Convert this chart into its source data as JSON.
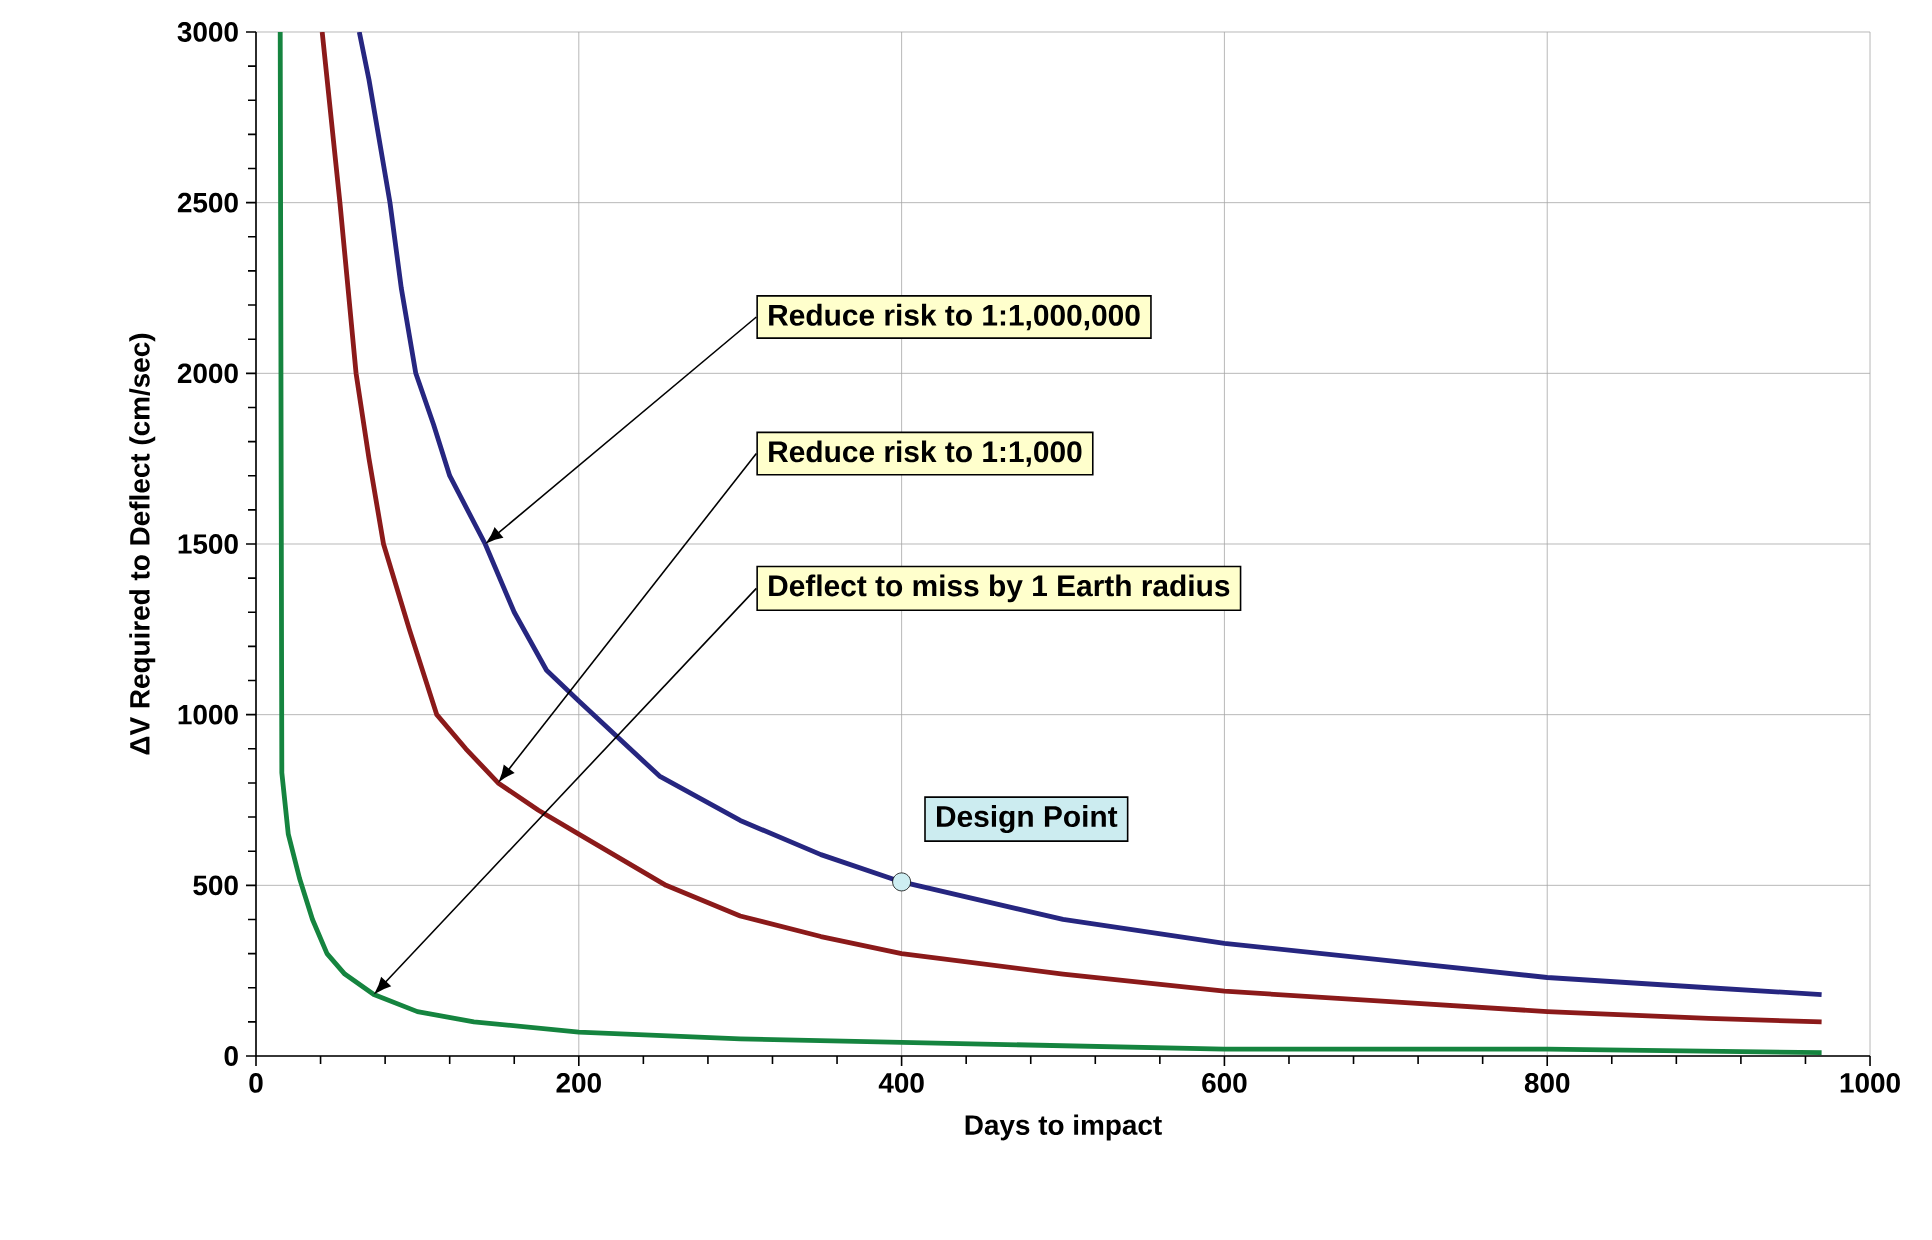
{
  "chart_data": {
    "type": "line",
    "xlabel": "Days to impact",
    "ylabel": "ΔV Required to Deflect (cm/sec)",
    "xlim": [
      0,
      1000
    ],
    "ylim": [
      0,
      3000
    ],
    "xticks": [
      0,
      200,
      400,
      600,
      800,
      1000
    ],
    "yticks": [
      0,
      500,
      1000,
      1500,
      2000,
      2500,
      3000
    ],
    "grid": true,
    "marker": "none",
    "line_style": "solid",
    "series": [
      {
        "color": "#262680",
        "x": [
          64,
          70,
          83,
          90,
          99,
          110,
          120,
          142,
          160,
          180,
          200,
          250,
          300,
          350,
          400,
          500,
          600,
          700,
          800,
          900,
          970
        ],
        "values": [
          3000,
          2860,
          2500,
          2250,
          2000,
          1850,
          1700,
          1500,
          1300,
          1130,
          1040,
          820,
          690,
          590,
          510,
          400,
          330,
          280,
          230,
          200,
          180
        ]
      },
      {
        "color": "#8b1a1a",
        "x": [
          41,
          52,
          62,
          70,
          79,
          95,
          112,
          130,
          150,
          175,
          200,
          254,
          300,
          350,
          400,
          500,
          600,
          700,
          800,
          900,
          970
        ],
        "values": [
          3000,
          2500,
          2000,
          1750,
          1500,
          1250,
          1000,
          900,
          800,
          720,
          650,
          500,
          410,
          350,
          300,
          240,
          190,
          160,
          130,
          110,
          100
        ]
      },
      {
        "color": "#15843f",
        "x": [
          15,
          16,
          20,
          27,
          35,
          44,
          55,
          73,
          100,
          135,
          200,
          300,
          400,
          600,
          800,
          970
        ],
        "values": [
          3000,
          830,
          650,
          520,
          400,
          300,
          240,
          180,
          130,
          100,
          70,
          50,
          40,
          20,
          20,
          10
        ]
      },
      {
        "type": "scatter",
        "marker": "circle",
        "color": "#cdeef2",
        "x": [
          400
        ],
        "values": [
          510
        ]
      }
    ],
    "annotations": [
      {
        "text": "Reduce risk to 1:1,000,000",
        "x": 142,
        "y": 1500
      },
      {
        "text": "Reduce risk to 1:1,000",
        "x": 150,
        "y": 800
      },
      {
        "text": "Deflect to miss by 1 Earth radius",
        "x": 73,
        "y": 180
      },
      {
        "text": "Design Point",
        "x": 400,
        "y": 510
      }
    ]
  }
}
